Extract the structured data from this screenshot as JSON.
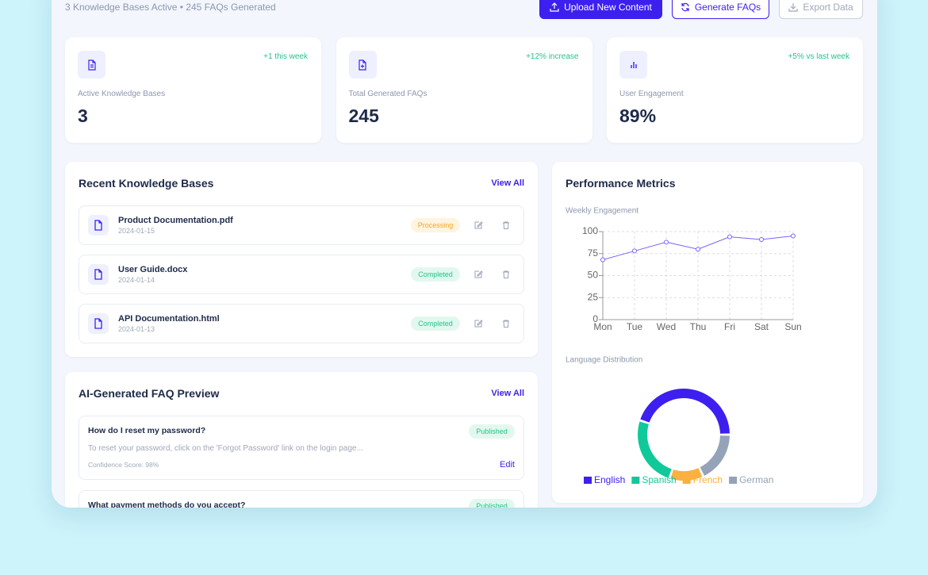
{
  "header": {
    "subtitle": "3 Knowledge Bases Active • 245 FAQs Generated",
    "buttons": [
      "Upload New Content",
      "Generate FAQs",
      "Export Data"
    ]
  },
  "stats": [
    {
      "badge": "+1 this week",
      "label": "Active Knowledge Bases",
      "value": "3"
    },
    {
      "badge": "+12% increase",
      "label": "Total Generated FAQs",
      "value": "245"
    },
    {
      "badge": "+5% vs last week",
      "label": "User Engagement",
      "value": "89%"
    }
  ],
  "knowledge_bases": {
    "title": "Recent Knowledge Bases",
    "view_all": "View All",
    "items": [
      {
        "name": "Product Documentation.pdf",
        "date": "2024-01-15",
        "status": "Processing"
      },
      {
        "name": "User Guide.docx",
        "date": "2024-01-14",
        "status": "Completed"
      },
      {
        "name": "API Documentation.html",
        "date": "2024-01-13",
        "status": "Completed"
      }
    ]
  },
  "faq_preview": {
    "title": "AI-Generated FAQ Preview",
    "view_all": "View All",
    "items": [
      {
        "question": "How do I reset my password?",
        "status": "Published",
        "answer": "To reset your password, click on the 'Forgot Password' link on the login page...",
        "confidence": "Confidence Score: 98%",
        "action": "Edit"
      },
      {
        "question": "What payment methods do you accept?",
        "status": "Published"
      }
    ]
  },
  "performance": {
    "title": "Performance Metrics"
  },
  "chart_data": [
    {
      "type": "line",
      "title": "Weekly Engagement",
      "categories": [
        "Mon",
        "Tue",
        "Wed",
        "Thu",
        "Fri",
        "Sat",
        "Sun"
      ],
      "values": [
        68,
        78,
        88,
        80,
        94,
        91,
        95
      ],
      "color": "#7b61ff",
      "ylim": [
        0,
        100
      ],
      "yticks": [
        0,
        25,
        50,
        75,
        100
      ],
      "grid": true
    },
    {
      "type": "pie",
      "title": "Language Distribution",
      "categories": [
        "English",
        "Spanish",
        "French",
        "German"
      ],
      "values": [
        45,
        25,
        12,
        18
      ],
      "colors": [
        "#3d1ff0",
        "#10c99a",
        "#fbb040",
        "#94a3b8"
      ],
      "donut": true,
      "legend": "bottom"
    }
  ]
}
